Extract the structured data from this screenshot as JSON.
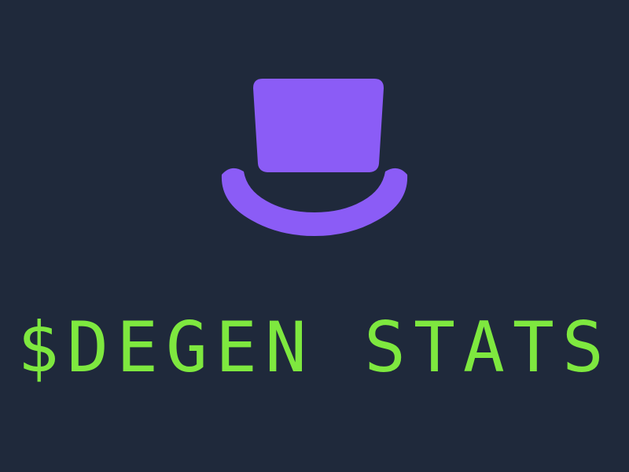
{
  "logo": {
    "icon": "top-hat-icon",
    "hat_color": "#8b5cf6",
    "band_color": "#1f293b"
  },
  "title": {
    "text": "$DEGEN STATS",
    "color": "#7ee83f"
  },
  "background_color": "#1f293b"
}
